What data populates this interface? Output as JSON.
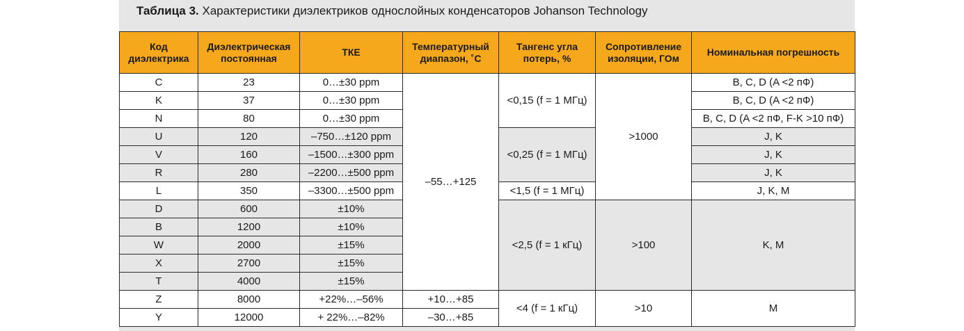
{
  "title": {
    "prefix": "Таблица 3.",
    "text": "Характеристики диэлектриков однослойных конденсаторов Johanson Technology"
  },
  "columns": [
    "Код диэлектрика",
    "Диэлектрическая постоянная",
    "ТКЕ",
    "Температурный диапазон, ˚С",
    "Тангенс угла потерь, %",
    "Сопротивление изоляции, ГОм",
    "Номинальная погрешность"
  ],
  "rows": [
    {
      "code": "C",
      "const": "23",
      "tke": "0…±30 ppm",
      "tolerance": "B, C, D (A <2 пФ)"
    },
    {
      "code": "K",
      "const": "37",
      "tke": "0…±30 ppm",
      "tolerance": "B, C, D (A <2 пФ)"
    },
    {
      "code": "N",
      "const": "80",
      "tke": "0…±30 ppm",
      "tolerance": "B, C, D (A <2 пФ, F-K >10 пФ)"
    },
    {
      "code": "U",
      "const": "120",
      "tke": "–750…±120 ppm",
      "tolerance": "J, K"
    },
    {
      "code": "V",
      "const": "160",
      "tke": "–1500…±300 ppm",
      "tolerance": "J, K"
    },
    {
      "code": "R",
      "const": "280",
      "tke": "–2200…±500 ppm",
      "tolerance": "J, K"
    },
    {
      "code": "L",
      "const": "350",
      "tke": "–3300…±500 ppm",
      "tolerance": "J, K, M"
    },
    {
      "code": "D",
      "const": "600",
      "tke": "±10%"
    },
    {
      "code": "B",
      "const": "1200",
      "tke": "±10%"
    },
    {
      "code": "W",
      "const": "2000",
      "tke": "±15%"
    },
    {
      "code": "X",
      "const": "2700",
      "tke": "±15%"
    },
    {
      "code": "T",
      "const": "4000",
      "tke": "±15%"
    },
    {
      "code": "Z",
      "const": "8000",
      "tke": "+22%…–56%",
      "temp": "+10…+85"
    },
    {
      "code": "Y",
      "const": "12000",
      "tke": "+ 22%…–82%",
      "temp": "–30…+85"
    }
  ],
  "merged": {
    "temp_main": "–55…+125",
    "loss_1": "<0,15 (f = 1 МГц)",
    "loss_2": "<0,25 (f = 1 МГц)",
    "loss_3": "<1,5 (f = 1 МГц)",
    "loss_4": "<2,5 (f = 1 кГц)",
    "loss_5": "<4 (f = 1 кГц)",
    "res_1": ">1000",
    "res_2": ">100",
    "res_3": ">10",
    "tol_group": "K, M",
    "tol_last": "M"
  }
}
